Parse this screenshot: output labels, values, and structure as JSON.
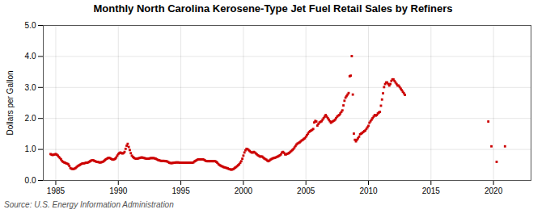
{
  "chart_data": {
    "type": "scatter",
    "title": "Monthly North Carolina Kerosene-Type Jet Fuel Retail Sales by Refiners",
    "ylabel": "Dollars per Gallon",
    "source": "Source: U.S. Energy Information Administration",
    "color": "#cc0000",
    "marker": "square",
    "grid": true,
    "xlim": [
      1984.0,
      2023.0
    ],
    "ylim": [
      0.0,
      5.0
    ],
    "xticks": [
      1985,
      1990,
      1995,
      2000,
      2005,
      2010,
      2015,
      2020
    ],
    "yticks": [
      {
        "value": 0.0,
        "label": "0.0"
      },
      {
        "value": 1.0,
        "label": "1.0"
      },
      {
        "value": 2.0,
        "label": "2.0"
      },
      {
        "value": 3.0,
        "label": "3.0"
      },
      {
        "value": 4.0,
        "label": "4.0"
      },
      {
        "value": 5.0,
        "label": "5.0"
      }
    ],
    "x": [
      1984.583,
      1984.667,
      1984.75,
      1984.833,
      1984.917,
      1985.0,
      1985.083,
      1985.167,
      1985.25,
      1985.333,
      1985.417,
      1985.5,
      1985.583,
      1985.667,
      1985.75,
      1985.833,
      1985.917,
      1986.0,
      1986.083,
      1986.167,
      1986.25,
      1986.333,
      1986.417,
      1986.5,
      1986.583,
      1986.667,
      1986.75,
      1986.833,
      1986.917,
      1987.0,
      1987.083,
      1987.167,
      1987.25,
      1987.333,
      1987.417,
      1987.5,
      1987.583,
      1987.667,
      1987.75,
      1987.833,
      1987.917,
      1988.0,
      1988.083,
      1988.167,
      1988.25,
      1988.333,
      1988.417,
      1988.5,
      1988.583,
      1988.667,
      1988.75,
      1988.833,
      1988.917,
      1989.0,
      1989.083,
      1989.167,
      1989.25,
      1989.333,
      1989.417,
      1989.5,
      1989.583,
      1989.667,
      1989.75,
      1989.833,
      1989.917,
      1990.0,
      1990.083,
      1990.167,
      1990.25,
      1990.333,
      1990.417,
      1990.5,
      1990.583,
      1990.667,
      1990.75,
      1990.833,
      1990.917,
      1991.0,
      1991.083,
      1991.167,
      1991.25,
      1991.333,
      1991.417,
      1991.5,
      1991.583,
      1991.667,
      1991.75,
      1991.833,
      1991.917,
      1992.0,
      1992.083,
      1992.167,
      1992.25,
      1992.333,
      1992.417,
      1992.5,
      1992.583,
      1992.667,
      1992.75,
      1992.833,
      1992.917,
      1993.0,
      1993.083,
      1993.167,
      1993.25,
      1993.333,
      1993.417,
      1993.5,
      1993.583,
      1993.667,
      1993.75,
      1993.833,
      1993.917,
      1994.0,
      1994.083,
      1994.167,
      1994.25,
      1994.333,
      1994.417,
      1994.5,
      1994.583,
      1994.667,
      1994.75,
      1994.833,
      1994.917,
      1995.0,
      1995.083,
      1995.167,
      1995.25,
      1995.333,
      1995.417,
      1995.5,
      1995.583,
      1995.667,
      1995.75,
      1995.833,
      1995.917,
      1996.0,
      1996.083,
      1996.167,
      1996.25,
      1996.333,
      1996.417,
      1996.5,
      1996.583,
      1996.667,
      1996.75,
      1996.833,
      1996.917,
      1997.0,
      1997.083,
      1997.167,
      1997.25,
      1997.333,
      1997.417,
      1997.5,
      1997.583,
      1997.667,
      1997.75,
      1997.833,
      1997.917,
      1998.0,
      1998.083,
      1998.167,
      1998.25,
      1998.333,
      1998.417,
      1998.5,
      1998.583,
      1998.667,
      1998.75,
      1998.833,
      1998.917,
      1999.0,
      1999.083,
      1999.167,
      1999.25,
      1999.333,
      1999.417,
      1999.5,
      1999.583,
      1999.667,
      1999.75,
      1999.833,
      1999.917,
      2000.0,
      2000.083,
      2000.167,
      2000.25,
      2000.333,
      2000.417,
      2000.5,
      2000.583,
      2000.667,
      2000.75,
      2000.833,
      2000.917,
      2001.0,
      2001.083,
      2001.167,
      2001.25,
      2001.333,
      2001.417,
      2001.5,
      2001.583,
      2001.667,
      2001.75,
      2001.833,
      2001.917,
      2002.0,
      2002.083,
      2002.167,
      2002.25,
      2002.333,
      2002.417,
      2002.5,
      2002.583,
      2002.667,
      2002.75,
      2002.833,
      2002.917,
      2003.0,
      2003.083,
      2003.167,
      2003.25,
      2003.333,
      2003.417,
      2003.5,
      2003.583,
      2003.667,
      2003.75,
      2003.833,
      2003.917,
      2004.0,
      2004.083,
      2004.167,
      2004.25,
      2004.333,
      2004.417,
      2004.5,
      2004.583,
      2004.667,
      2004.75,
      2004.833,
      2004.917,
      2005.0,
      2005.083,
      2005.167,
      2005.25,
      2005.333,
      2005.417,
      2005.5,
      2005.583,
      2005.667,
      2005.75,
      2005.833,
      2005.917,
      2006.0,
      2006.083,
      2006.167,
      2006.25,
      2006.333,
      2006.417,
      2006.5,
      2006.583,
      2006.667,
      2006.75,
      2006.833,
      2006.917,
      2007.0,
      2007.083,
      2007.167,
      2007.25,
      2007.333,
      2007.417,
      2007.5,
      2007.583,
      2007.667,
      2007.75,
      2007.833,
      2007.917,
      2008.0,
      2008.083,
      2008.167,
      2008.25,
      2008.333,
      2008.417,
      2008.5,
      2008.583,
      2008.667,
      2008.75,
      2008.833,
      2008.917,
      2009.0,
      2009.083,
      2009.167,
      2009.25,
      2009.333,
      2009.417,
      2009.5,
      2009.583,
      2009.667,
      2009.75,
      2009.833,
      2009.917,
      2010.0,
      2010.083,
      2010.167,
      2010.25,
      2010.333,
      2010.417,
      2010.5,
      2010.583,
      2010.667,
      2010.75,
      2010.833,
      2010.917,
      2011.0,
      2011.083,
      2011.167,
      2011.25,
      2011.333,
      2011.417,
      2011.5,
      2011.583,
      2011.667,
      2011.75,
      2011.833,
      2011.917,
      2012.0,
      2012.083,
      2012.167,
      2012.25,
      2012.333,
      2012.417,
      2012.5,
      2012.583,
      2012.667,
      2012.75,
      2012.833,
      2012.917,
      2019.583,
      2019.833,
      2020.25,
      2020.917
    ],
    "values": [
      0.85,
      0.83,
      0.82,
      0.83,
      0.84,
      0.85,
      0.83,
      0.8,
      0.76,
      0.72,
      0.68,
      0.63,
      0.6,
      0.58,
      0.57,
      0.55,
      0.54,
      0.52,
      0.47,
      0.4,
      0.38,
      0.37,
      0.37,
      0.38,
      0.4,
      0.43,
      0.46,
      0.48,
      0.5,
      0.52,
      0.54,
      0.55,
      0.55,
      0.56,
      0.57,
      0.57,
      0.58,
      0.6,
      0.62,
      0.64,
      0.65,
      0.65,
      0.63,
      0.62,
      0.6,
      0.6,
      0.59,
      0.58,
      0.58,
      0.59,
      0.6,
      0.62,
      0.65,
      0.68,
      0.7,
      0.72,
      0.73,
      0.72,
      0.7,
      0.68,
      0.67,
      0.68,
      0.7,
      0.74,
      0.8,
      0.85,
      0.88,
      0.9,
      0.88,
      0.87,
      0.88,
      0.92,
      1.02,
      1.12,
      1.18,
      1.08,
      0.98,
      0.88,
      0.8,
      0.76,
      0.73,
      0.71,
      0.7,
      0.7,
      0.71,
      0.72,
      0.73,
      0.74,
      0.74,
      0.73,
      0.72,
      0.71,
      0.7,
      0.7,
      0.7,
      0.71,
      0.72,
      0.72,
      0.72,
      0.72,
      0.71,
      0.7,
      0.68,
      0.66,
      0.65,
      0.64,
      0.63,
      0.63,
      0.63,
      0.63,
      0.62,
      0.62,
      0.61,
      0.59,
      0.57,
      0.56,
      0.56,
      0.56,
      0.57,
      0.57,
      0.58,
      0.58,
      0.58,
      0.58,
      0.57,
      0.57,
      0.57,
      0.57,
      0.57,
      0.57,
      0.57,
      0.57,
      0.57,
      0.57,
      0.57,
      0.57,
      0.57,
      0.58,
      0.61,
      0.63,
      0.65,
      0.67,
      0.68,
      0.68,
      0.68,
      0.68,
      0.68,
      0.67,
      0.65,
      0.63,
      0.62,
      0.62,
      0.62,
      0.62,
      0.62,
      0.62,
      0.62,
      0.62,
      0.62,
      0.6,
      0.57,
      0.53,
      0.5,
      0.48,
      0.46,
      0.45,
      0.43,
      0.42,
      0.41,
      0.4,
      0.39,
      0.37,
      0.36,
      0.35,
      0.35,
      0.36,
      0.38,
      0.41,
      0.43,
      0.46,
      0.49,
      0.52,
      0.57,
      0.62,
      0.7,
      0.8,
      0.9,
      0.97,
      1.02,
      1.01,
      0.98,
      0.95,
      0.92,
      0.9,
      0.9,
      0.92,
      0.9,
      0.87,
      0.84,
      0.81,
      0.79,
      0.77,
      0.77,
      0.77,
      0.74,
      0.71,
      0.69,
      0.67,
      0.64,
      0.62,
      0.64,
      0.67,
      0.69,
      0.71,
      0.72,
      0.73,
      0.74,
      0.76,
      0.77,
      0.79,
      0.81,
      0.84,
      0.9,
      0.92,
      0.89,
      0.84,
      0.84,
      0.86,
      0.87,
      0.89,
      0.92,
      0.95,
      0.98,
      1.01,
      1.06,
      1.11,
      1.16,
      1.19,
      1.21,
      1.23,
      1.26,
      1.29,
      1.31,
      1.34,
      1.36,
      1.41,
      1.46,
      1.51,
      1.56,
      1.59,
      1.61,
      1.63,
      1.66,
      1.87,
      1.92,
      1.9,
      1.77,
      1.82,
      1.87,
      1.89,
      1.91,
      1.96,
      2.01,
      2.06,
      2.11,
      2.06,
      2.01,
      1.96,
      1.91,
      1.86,
      1.89,
      1.91,
      1.93,
      1.96,
      2.01,
      2.06,
      2.09,
      2.11,
      2.16,
      2.21,
      2.26,
      2.42,
      2.57,
      2.67,
      2.72,
      2.77,
      2.82,
      3.36,
      3.38,
      4.01,
      2.77,
      1.51,
      1.31,
      1.26,
      1.31,
      1.36,
      1.41,
      1.49,
      1.51,
      1.53,
      1.56,
      1.59,
      1.61,
      1.66,
      1.71,
      1.76,
      1.86,
      1.91,
      1.96,
      2.01,
      2.06,
      2.11,
      2.09,
      2.11,
      2.16,
      2.19,
      2.21,
      2.41,
      2.61,
      2.81,
      3.01,
      3.11,
      3.16,
      3.16,
      3.11,
      3.06,
      3.11,
      3.21,
      3.26,
      3.26,
      3.21,
      3.16,
      3.11,
      3.06,
      3.06,
      3.01,
      2.96,
      2.91,
      2.86,
      2.81,
      2.76,
      1.9,
      1.1,
      0.6,
      1.1
    ]
  }
}
